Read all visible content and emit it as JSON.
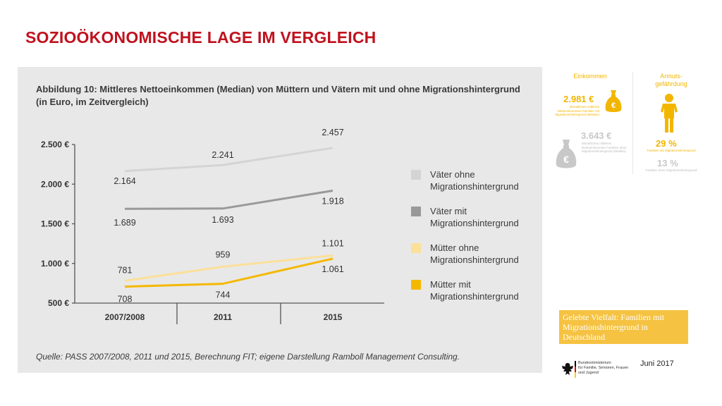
{
  "slide_title": "SOZIOÖKONOMISCHE LAGE IM VERGLEICH",
  "figure": {
    "title": "Abbildung 10: Mittleres Nettoeinkommen (Median) von Müttern und Vätern mit und ohne Migrationshintergrund",
    "subtitle": "(in Euro, im Zeitvergleich)",
    "source": "Quelle: PASS 2007/2008, 2011 und 2015, Berechnung FIT; eigene Darstellung Ramboll Management Consulting."
  },
  "chart_data": {
    "type": "line",
    "title": "Abbildung 10: Mittleres Nettoeinkommen (Median) von Müttern und Vätern mit und ohne Migrationshintergrund",
    "subtitle": "(in Euro, im Zeitvergleich)",
    "xlabel": "",
    "ylabel": "",
    "categories": [
      "2007/2008",
      "2011",
      "2015"
    ],
    "ylim": [
      500,
      2500
    ],
    "yticks": [
      500,
      1000,
      1500,
      2000,
      2500
    ],
    "ytick_labels": [
      "500 €",
      "1.000 €",
      "1.500 €",
      "2.000 €",
      "2.500 €"
    ],
    "grid": false,
    "legend_position": "right",
    "series": [
      {
        "name": "Väter ohne Migrationshintergrund",
        "values": [
          2164,
          2241,
          2457
        ],
        "labels": [
          "2.164",
          "2.241",
          "2.457"
        ],
        "color": "#d4d4d4"
      },
      {
        "name": "Väter mit Migrationshintergrund",
        "values": [
          1689,
          1693,
          1918
        ],
        "labels": [
          "1.689",
          "1.693",
          "1.918"
        ],
        "color": "#999999"
      },
      {
        "name": "Mütter ohne Migrationshintergrund",
        "values": [
          781,
          959,
          1101
        ],
        "labels": [
          "781",
          "959",
          "1.101"
        ],
        "color": "#fbe09a"
      },
      {
        "name": "Mütter mit Migrationshintergrund",
        "values": [
          708,
          744,
          1061
        ],
        "labels": [
          "708",
          "744",
          "1.061"
        ],
        "color": "#f5b800"
      }
    ]
  },
  "legend": [
    {
      "label": "Väter ohne Migrationshintergrund",
      "color": "#d4d4d4"
    },
    {
      "label": "Väter mit Migrationshintergrund",
      "color": "#999999"
    },
    {
      "label": "Mütter ohne Migrationshintergrund",
      "color": "#fbe09a"
    },
    {
      "label": "Mütter mit Migrationshintergrund",
      "color": "#f5b800"
    }
  ],
  "infographic": {
    "income_heading": "Einkommen",
    "risk_heading_line1": "Armuts-",
    "risk_heading_line2": "gefährdung",
    "income_with": "2.981 €",
    "income_with_caption": "Monatliches mittleres Nettoeinkommen Familien mit Migrationshintergrund (Median)",
    "income_without": "3.643 €",
    "income_without_caption": "Monatliches mittleres Nettoeinkommen Familien ohne Migrationshintergrund (Median)",
    "risk_with": "29 %",
    "risk_with_caption": "Familien mit Migrationshintergrund",
    "risk_without": "13 %",
    "risk_without_caption": "Familien ohne Migrationshintergrund",
    "money_symbol": "€",
    "icons": [
      "money-bag-icon",
      "person-icon"
    ],
    "colors": {
      "accent": "#f2b600",
      "muted": "#c8c8c8"
    }
  },
  "publication": {
    "title": "Gelebte Vielfalt: Familien mit Migrationshintergrund in Deutschland",
    "date": "Juni 2017"
  },
  "ministry": {
    "line1": "Bundesministerium",
    "line2": "für Familie, Senioren, Frauen",
    "line3": "und Jugend"
  }
}
